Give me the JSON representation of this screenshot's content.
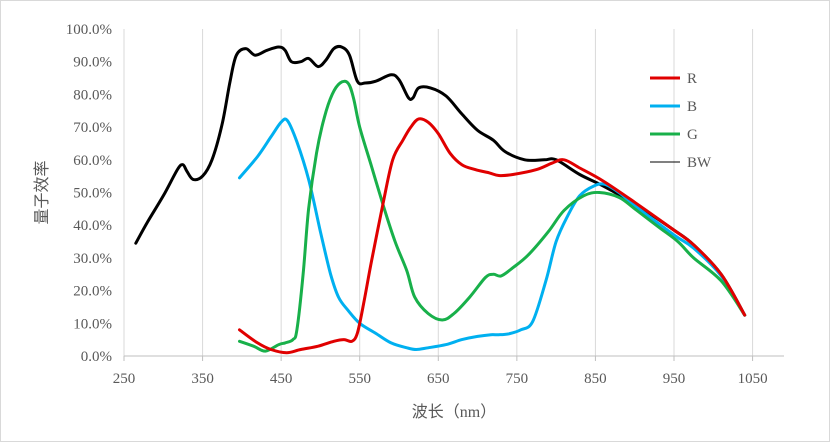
{
  "chart_data": {
    "type": "line",
    "title": "",
    "xlabel": "波长（nm）",
    "ylabel": "量子效率",
    "xlim": [
      250,
      1090
    ],
    "ylim": [
      0,
      1.0
    ],
    "x_ticks": [
      250,
      350,
      450,
      550,
      650,
      750,
      850,
      950,
      1050
    ],
    "x_tick_labels": [
      "250",
      "350",
      "450",
      "550",
      "650",
      "750",
      "850",
      "950",
      "1050"
    ],
    "y_ticks": [
      0,
      0.1,
      0.2,
      0.3,
      0.4,
      0.5,
      0.6,
      0.7,
      0.8,
      0.9,
      1.0
    ],
    "y_tick_labels": [
      "0.0%",
      "10.0%",
      "20.0%",
      "30.0%",
      "40.0%",
      "50.0%",
      "60.0%",
      "70.0%",
      "80.0%",
      "90.0%",
      "100.0%"
    ],
    "grid": "vertical",
    "legend_position": "right",
    "series": [
      {
        "name": "R",
        "color": "#e00000",
        "stroke_width": 3,
        "points": [
          [
            397,
            0.08
          ],
          [
            420,
            0.04
          ],
          [
            437,
            0.02
          ],
          [
            457,
            0.01
          ],
          [
            475,
            0.02
          ],
          [
            497,
            0.03
          ],
          [
            517,
            0.045
          ],
          [
            530,
            0.05
          ],
          [
            540,
            0.045
          ],
          [
            547,
            0.07
          ],
          [
            555,
            0.16
          ],
          [
            565,
            0.29
          ],
          [
            580,
            0.47
          ],
          [
            592,
            0.6
          ],
          [
            605,
            0.66
          ],
          [
            615,
            0.7
          ],
          [
            625,
            0.725
          ],
          [
            637,
            0.715
          ],
          [
            650,
            0.68
          ],
          [
            665,
            0.62
          ],
          [
            680,
            0.585
          ],
          [
            697,
            0.57
          ],
          [
            715,
            0.56
          ],
          [
            727,
            0.552
          ],
          [
            745,
            0.555
          ],
          [
            775,
            0.57
          ],
          [
            795,
            0.59
          ],
          [
            810,
            0.6
          ],
          [
            830,
            0.575
          ],
          [
            860,
            0.535
          ],
          [
            900,
            0.47
          ],
          [
            950,
            0.385
          ],
          [
            975,
            0.34
          ],
          [
            1010,
            0.25
          ],
          [
            1040,
            0.125
          ]
        ]
      },
      {
        "name": "B",
        "color": "#00b0f0",
        "stroke_width": 3,
        "points": [
          [
            397,
            0.545
          ],
          [
            420,
            0.61
          ],
          [
            437,
            0.67
          ],
          [
            450,
            0.715
          ],
          [
            458,
            0.72
          ],
          [
            470,
            0.655
          ],
          [
            485,
            0.54
          ],
          [
            500,
            0.38
          ],
          [
            513,
            0.25
          ],
          [
            523,
            0.18
          ],
          [
            535,
            0.14
          ],
          [
            550,
            0.1
          ],
          [
            570,
            0.07
          ],
          [
            590,
            0.04
          ],
          [
            610,
            0.025
          ],
          [
            622,
            0.02
          ],
          [
            637,
            0.025
          ],
          [
            660,
            0.035
          ],
          [
            680,
            0.05
          ],
          [
            700,
            0.06
          ],
          [
            717,
            0.065
          ],
          [
            727,
            0.065
          ],
          [
            740,
            0.068
          ],
          [
            755,
            0.08
          ],
          [
            770,
            0.105
          ],
          [
            787,
            0.23
          ],
          [
            800,
            0.35
          ],
          [
            815,
            0.43
          ],
          [
            830,
            0.49
          ],
          [
            848,
            0.52
          ],
          [
            862,
            0.525
          ],
          [
            880,
            0.5
          ],
          [
            900,
            0.46
          ],
          [
            950,
            0.37
          ],
          [
            975,
            0.33
          ],
          [
            1010,
            0.245
          ],
          [
            1040,
            0.125
          ]
        ]
      },
      {
        "name": "G",
        "color": "#18b04a",
        "stroke_width": 3,
        "points": [
          [
            397,
            0.045
          ],
          [
            415,
            0.03
          ],
          [
            430,
            0.015
          ],
          [
            447,
            0.035
          ],
          [
            455,
            0.04
          ],
          [
            465,
            0.05
          ],
          [
            470,
            0.08
          ],
          [
            478,
            0.25
          ],
          [
            485,
            0.45
          ],
          [
            495,
            0.62
          ],
          [
            505,
            0.73
          ],
          [
            515,
            0.8
          ],
          [
            525,
            0.835
          ],
          [
            535,
            0.835
          ],
          [
            542,
            0.79
          ],
          [
            550,
            0.7
          ],
          [
            565,
            0.58
          ],
          [
            580,
            0.46
          ],
          [
            595,
            0.35
          ],
          [
            610,
            0.26
          ],
          [
            620,
            0.18
          ],
          [
            637,
            0.13
          ],
          [
            655,
            0.11
          ],
          [
            670,
            0.13
          ],
          [
            690,
            0.18
          ],
          [
            710,
            0.24
          ],
          [
            720,
            0.25
          ],
          [
            730,
            0.245
          ],
          [
            745,
            0.27
          ],
          [
            765,
            0.31
          ],
          [
            790,
            0.38
          ],
          [
            810,
            0.445
          ],
          [
            835,
            0.49
          ],
          [
            855,
            0.5
          ],
          [
            880,
            0.485
          ],
          [
            900,
            0.45
          ],
          [
            930,
            0.395
          ],
          [
            955,
            0.35
          ],
          [
            975,
            0.3
          ],
          [
            1010,
            0.23
          ],
          [
            1040,
            0.125
          ]
        ]
      },
      {
        "name": "BW",
        "color": "#000000",
        "stroke_width": 3,
        "legend_stroke_width": 1,
        "points": [
          [
            265,
            0.345
          ],
          [
            280,
            0.41
          ],
          [
            300,
            0.49
          ],
          [
            318,
            0.57
          ],
          [
            325,
            0.585
          ],
          [
            330,
            0.565
          ],
          [
            338,
            0.54
          ],
          [
            350,
            0.55
          ],
          [
            362,
            0.6
          ],
          [
            375,
            0.71
          ],
          [
            385,
            0.84
          ],
          [
            393,
            0.92
          ],
          [
            405,
            0.94
          ],
          [
            417,
            0.92
          ],
          [
            432,
            0.935
          ],
          [
            447,
            0.945
          ],
          [
            455,
            0.935
          ],
          [
            463,
            0.9
          ],
          [
            475,
            0.9
          ],
          [
            485,
            0.91
          ],
          [
            497,
            0.885
          ],
          [
            507,
            0.905
          ],
          [
            517,
            0.94
          ],
          [
            527,
            0.945
          ],
          [
            537,
            0.92
          ],
          [
            547,
            0.84
          ],
          [
            557,
            0.835
          ],
          [
            570,
            0.84
          ],
          [
            590,
            0.86
          ],
          [
            600,
            0.845
          ],
          [
            612,
            0.79
          ],
          [
            618,
            0.79
          ],
          [
            625,
            0.82
          ],
          [
            640,
            0.82
          ],
          [
            660,
            0.795
          ],
          [
            680,
            0.74
          ],
          [
            700,
            0.69
          ],
          [
            720,
            0.66
          ],
          [
            735,
            0.625
          ],
          [
            760,
            0.6
          ],
          [
            785,
            0.6
          ],
          [
            800,
            0.6
          ],
          [
            830,
            0.555
          ],
          [
            860,
            0.52
          ],
          [
            900,
            0.465
          ],
          [
            950,
            0.385
          ],
          [
            975,
            0.34
          ],
          [
            1010,
            0.25
          ],
          [
            1040,
            0.125
          ]
        ]
      }
    ]
  }
}
